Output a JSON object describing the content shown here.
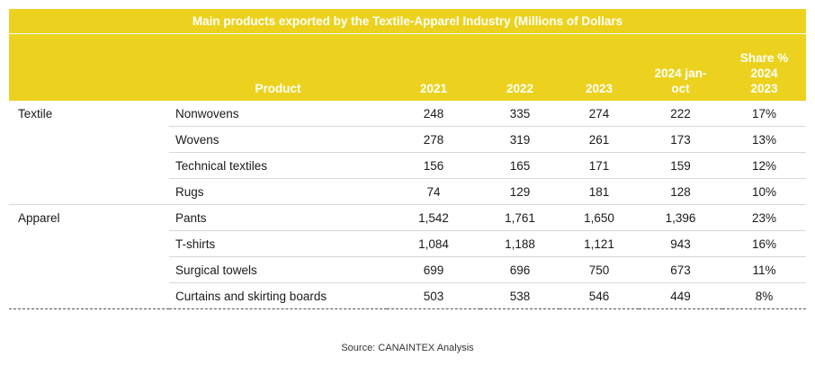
{
  "table": {
    "title": "Main products exported by the Textile-Apparel Industry (Millions of Dollars",
    "headers": {
      "product": "Product",
      "y2021": "2021",
      "y2022": "2022",
      "y2023": "2023",
      "y2024_line1": "2024 jan-",
      "y2024_line2": "oct",
      "share_line1": "Share %",
      "share_line2": "2024",
      "share_line3": "2023"
    },
    "groups": [
      {
        "category": "Textile",
        "rows": [
          {
            "product": "Nonwovens",
            "y2021": "248",
            "y2022": "335",
            "y2023": "274",
            "y2024": "222",
            "share": "17%"
          },
          {
            "product": "Wovens",
            "y2021": "278",
            "y2022": "319",
            "y2023": "261",
            "y2024": "173",
            "share": "13%"
          },
          {
            "product": "Technical textiles",
            "y2021": "156",
            "y2022": "165",
            "y2023": "171",
            "y2024": "159",
            "share": "12%"
          },
          {
            "product": "Rugs",
            "y2021": "74",
            "y2022": "129",
            "y2023": "181",
            "y2024": "128",
            "share": "10%"
          }
        ]
      },
      {
        "category": "Apparel",
        "rows": [
          {
            "product": "Pants",
            "y2021": "1,542",
            "y2022": "1,761",
            "y2023": "1,650",
            "y2024": "1,396",
            "share": "23%"
          },
          {
            "product": "T-shirts",
            "y2021": "1,084",
            "y2022": "1,188",
            "y2023": "1,121",
            "y2024": "943",
            "share": "16%"
          },
          {
            "product": "Surgical towels",
            "y2021": "699",
            "y2022": "696",
            "y2023": "750",
            "y2024": "673",
            "share": "11%"
          },
          {
            "product": "Curtains and skirting boards",
            "y2021": "503",
            "y2022": "538",
            "y2023": "546",
            "y2024": "449",
            "share": "8%"
          }
        ]
      }
    ]
  },
  "source": "Source: CANAINTEX Analysis",
  "colors": {
    "header_background": "#ecd21e",
    "header_text": "#ffffff"
  }
}
